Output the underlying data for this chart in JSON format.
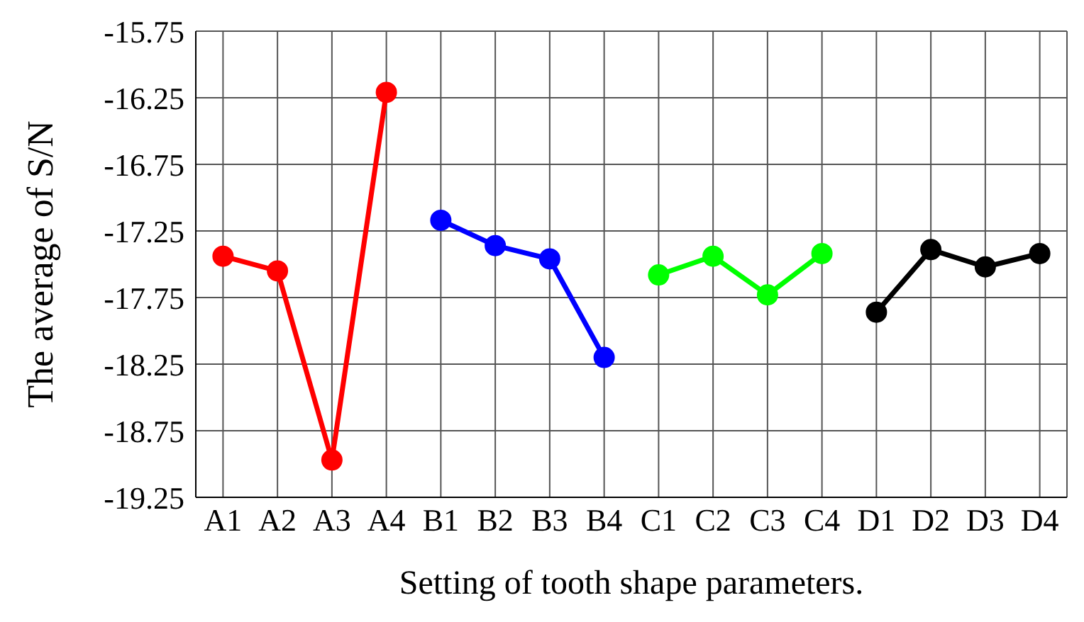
{
  "chart_data": {
    "type": "line",
    "xlabel": "Setting of tooth shape parameters.",
    "ylabel": "The average of S/N",
    "categories": [
      "A1",
      "A2",
      "A3",
      "A4",
      "B1",
      "B2",
      "B3",
      "B4",
      "C1",
      "C2",
      "C3",
      "C4",
      "D1",
      "D2",
      "D3",
      "D4"
    ],
    "series": [
      {
        "color": "#ff0000",
        "values": [
          -17.44,
          -17.55,
          -18.97,
          -16.21,
          null,
          null,
          null,
          null,
          null,
          null,
          null,
          null,
          null,
          null,
          null,
          null
        ]
      },
      {
        "color": "#0000ff",
        "values": [
          null,
          null,
          null,
          null,
          -17.17,
          -17.36,
          -17.46,
          -18.2,
          null,
          null,
          null,
          null,
          null,
          null,
          null,
          null
        ]
      },
      {
        "color": "#00ff00",
        "values": [
          null,
          null,
          null,
          null,
          null,
          null,
          null,
          null,
          -17.58,
          -17.44,
          -17.73,
          -17.42,
          null,
          null,
          null,
          null
        ]
      },
      {
        "color": "#000000",
        "values": [
          null,
          null,
          null,
          null,
          null,
          null,
          null,
          null,
          null,
          null,
          null,
          null,
          -17.86,
          -17.39,
          -17.52,
          -17.42
        ]
      }
    ],
    "ylim": [
      -19.25,
      -15.75
    ],
    "yticks": [
      -19.25,
      -18.75,
      -18.25,
      -17.75,
      -17.25,
      -16.75,
      -16.25,
      -15.75
    ],
    "grid": true,
    "marker": "circle"
  }
}
